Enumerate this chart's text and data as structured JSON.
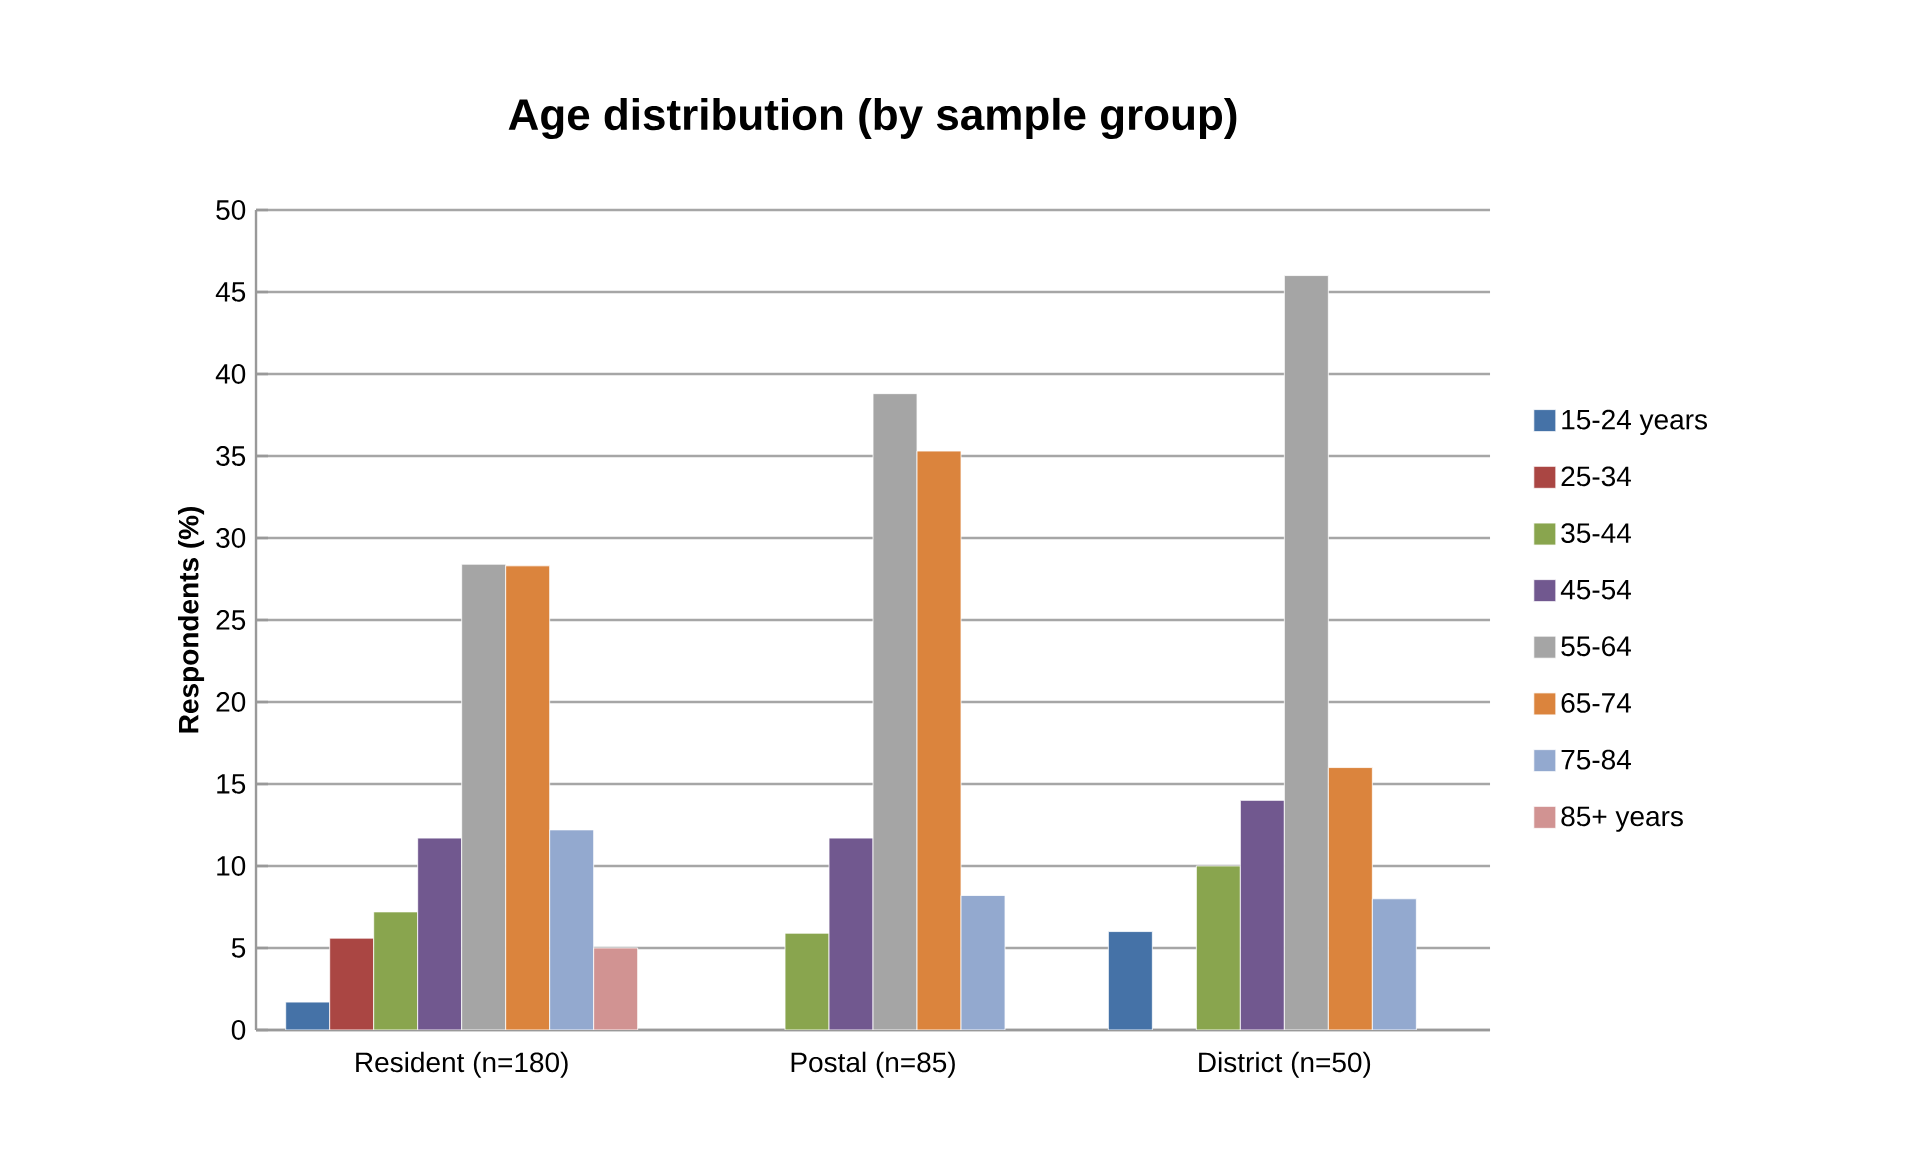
{
  "chart_data": {
    "type": "bar",
    "title": "Age distribution (by sample group)",
    "ylabel": "Respondents (%)",
    "categories": [
      "Resident (n=180)",
      "Postal (n=85)",
      "District (n=50)"
    ],
    "series": [
      {
        "name": "15-24 years",
        "color": "#4572a7",
        "values": [
          1.7,
          null,
          6.0
        ]
      },
      {
        "name": "25-34",
        "color": "#aa4643",
        "values": [
          5.6,
          null,
          null
        ]
      },
      {
        "name": "35-44",
        "color": "#89a54e",
        "values": [
          7.2,
          5.9,
          10.0
        ]
      },
      {
        "name": "45-54",
        "color": "#71588f",
        "values": [
          11.7,
          11.7,
          14.0
        ]
      },
      {
        "name": "55-64",
        "color": "#a5a5a5",
        "values": [
          28.4,
          38.8,
          46.0
        ]
      },
      {
        "name": "65-74",
        "color": "#db843d",
        "values": [
          28.3,
          35.3,
          16.0
        ]
      },
      {
        "name": "75-84",
        "color": "#93a9cf",
        "values": [
          12.2,
          8.2,
          8.0
        ]
      },
      {
        "name": "85+ years",
        "color": "#d19392",
        "values": [
          5.0,
          null,
          null
        ]
      }
    ],
    "ylim": [
      0,
      50
    ],
    "yticks": [
      0,
      5,
      10,
      15,
      20,
      25,
      30,
      35,
      40,
      45,
      50
    ],
    "grid": "y",
    "legend": "right"
  }
}
